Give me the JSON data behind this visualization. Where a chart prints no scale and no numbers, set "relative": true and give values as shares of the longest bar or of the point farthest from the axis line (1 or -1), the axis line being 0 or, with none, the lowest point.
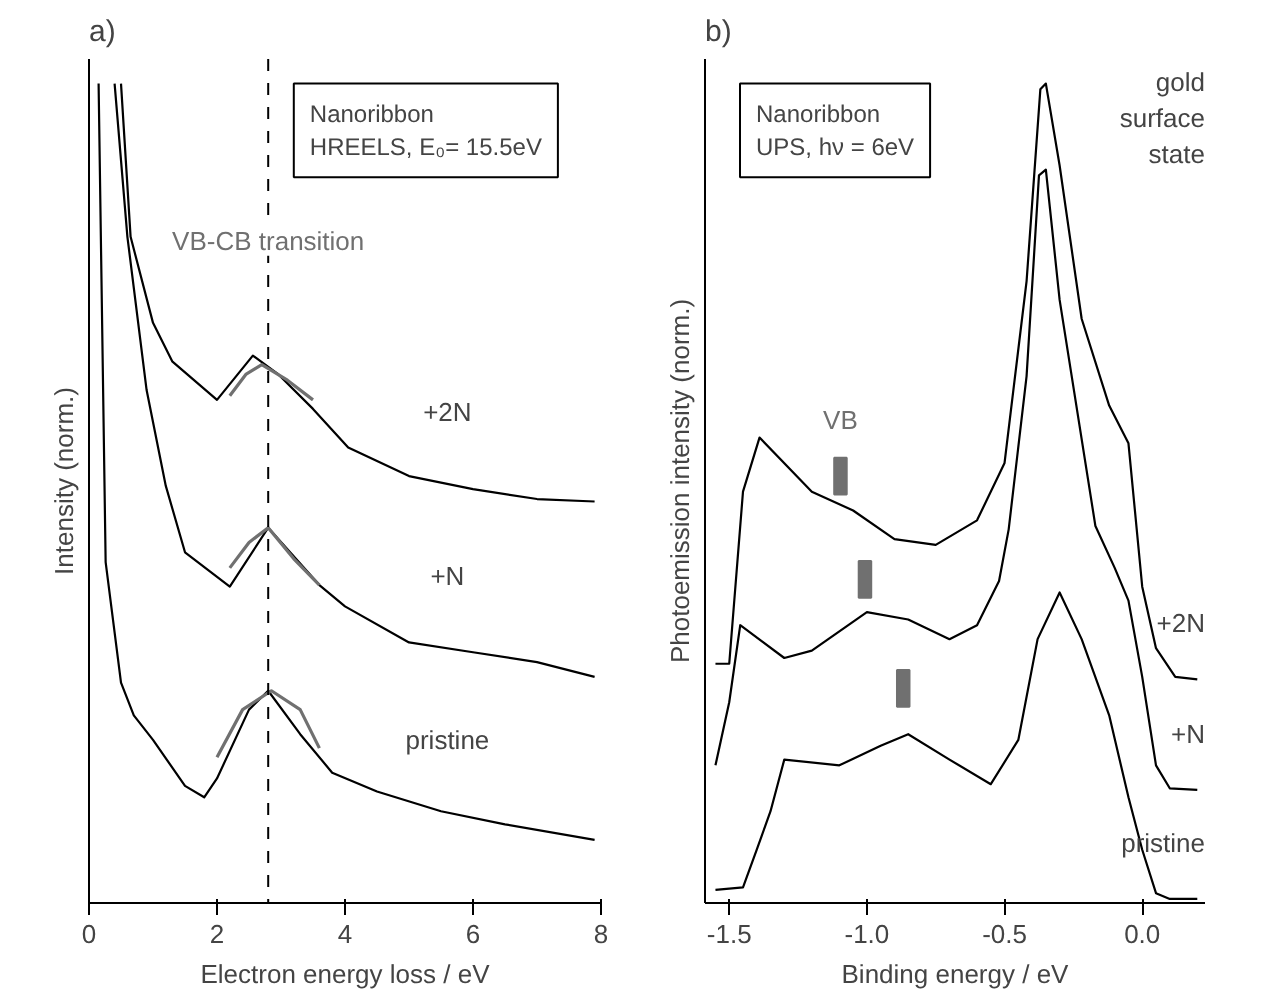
{
  "chart_data": [
    {
      "type": "line",
      "relative": true,
      "xlabel": "Electron energy loss / eV",
      "ylabel": "Intensity (norm.)",
      "xlim": [
        0,
        8
      ],
      "xticks": [
        0,
        2,
        4,
        6,
        8
      ],
      "grid": false,
      "legend": false,
      "marker": "none",
      "line_style": "solid",
      "annotations": [
        "a)",
        "Nanoribbon",
        "HREELS, E₀= 15.5eV"
      ],
      "ref_lines": [
        {
          "axis": "x",
          "value": 2.8,
          "label": "VB-CB transition",
          "line_style": "dashed",
          "color": "#000000"
        }
      ],
      "series": [
        {
          "name": "+2N",
          "color": "#000000",
          "x": [
            0.5,
            0.65,
            1.0,
            1.3,
            2.0,
            2.56,
            2.96,
            3.5,
            4.05,
            5.0,
            6.0,
            7.0,
            7.9
          ],
          "values": [
            1.0,
            0.813,
            0.708,
            0.661,
            0.614,
            0.668,
            0.645,
            0.603,
            0.556,
            0.521,
            0.505,
            0.493,
            0.49
          ]
        },
        {
          "name": "+N",
          "color": "#000000",
          "x": [
            0.4,
            0.6,
            0.9,
            1.2,
            1.5,
            2.2,
            2.8,
            3.6,
            4.0,
            5.0,
            6.0,
            7.0,
            7.9
          ],
          "values": [
            1.0,
            0.813,
            0.626,
            0.509,
            0.428,
            0.386,
            0.458,
            0.388,
            0.362,
            0.318,
            0.306,
            0.294,
            0.276
          ]
        },
        {
          "name": "pristine",
          "color": "#000000",
          "x": [
            0.15,
            0.26,
            0.5,
            0.7,
            1.0,
            1.5,
            1.8,
            2.0,
            2.5,
            2.8,
            3.3,
            3.8,
            4.5,
            5.5,
            6.5,
            7.9
          ],
          "values": [
            1.0,
            0.416,
            0.269,
            0.229,
            0.199,
            0.143,
            0.129,
            0.152,
            0.236,
            0.259,
            0.206,
            0.159,
            0.136,
            0.112,
            0.096,
            0.077
          ]
        },
        {
          "type": "line",
          "color": "#707070",
          "x": [
            2.2,
            2.45,
            2.7,
            3.1,
            3.5
          ],
          "values": [
            0.619,
            0.645,
            0.657,
            0.638,
            0.614
          ]
        },
        {
          "type": "line",
          "color": "#707070",
          "x": [
            2.2,
            2.5,
            2.8,
            3.2,
            3.6
          ],
          "values": [
            0.409,
            0.44,
            0.458,
            0.42,
            0.388
          ]
        },
        {
          "type": "line",
          "color": "#707070",
          "x": [
            2.0,
            2.4,
            2.85,
            3.3,
            3.6
          ],
          "values": [
            0.178,
            0.236,
            0.259,
            0.236,
            0.189
          ]
        }
      ]
    },
    {
      "type": "line",
      "relative": true,
      "xlabel": "Binding energy / eV",
      "ylabel": "Photoemission intensity (norm.)",
      "xlim": [
        -1.588,
        0.228
      ],
      "xticks": [
        {
          "value": -1.5,
          "label": "-1.5"
        },
        {
          "value": -1.0,
          "label": "-1.0"
        },
        {
          "value": -0.5,
          "label": "-0.5"
        },
        {
          "value": 0.0,
          "label": "0.0"
        }
      ],
      "grid": false,
      "legend": false,
      "marker": "none",
      "line_style": "solid",
      "annotations": [
        "b)",
        "Nanoribbon",
        "UPS, hν = 6eV",
        "gold surface state",
        "VB"
      ],
      "series": [
        {
          "name": "+2N",
          "color": "#000000",
          "x": [
            -1.55,
            -1.5,
            -1.45,
            -1.39,
            -1.2,
            -1.05,
            -0.9,
            -0.75,
            -0.6,
            -0.5,
            -0.42,
            -0.37,
            -0.35,
            -0.3,
            -0.22,
            -0.12,
            -0.05,
            0.0,
            0.05,
            0.12,
            0.2
          ],
          "values": [
            0.292,
            0.292,
            0.502,
            0.568,
            0.502,
            0.479,
            0.444,
            0.437,
            0.467,
            0.537,
            0.759,
            0.993,
            1.0,
            0.9,
            0.713,
            0.607,
            0.561,
            0.386,
            0.311,
            0.276,
            0.273
          ]
        },
        {
          "name": "+N",
          "color": "#000000",
          "x": [
            -1.55,
            -1.5,
            -1.46,
            -1.3,
            -1.2,
            -1.0,
            -0.85,
            -0.7,
            -0.6,
            -0.52,
            -0.485,
            -0.42,
            -0.375,
            -0.35,
            -0.3,
            -0.17,
            -0.1,
            -0.05,
            0.0,
            0.05,
            0.1,
            0.2
          ],
          "values": [
            0.168,
            0.245,
            0.339,
            0.299,
            0.308,
            0.355,
            0.346,
            0.322,
            0.339,
            0.393,
            0.456,
            0.643,
            0.888,
            0.895,
            0.736,
            0.46,
            0.409,
            0.369,
            0.276,
            0.168,
            0.14,
            0.138
          ]
        },
        {
          "name": "pristine",
          "color": "#000000",
          "x": [
            -1.55,
            -1.45,
            -1.4,
            -1.35,
            -1.3,
            -1.1,
            -0.95,
            -0.85,
            -0.7,
            -0.55,
            -0.45,
            -0.38,
            -0.3,
            -0.22,
            -0.12,
            -0.05,
            0.0,
            0.05,
            0.1,
            0.2
          ],
          "values": [
            0.016,
            0.019,
            0.065,
            0.112,
            0.175,
            0.168,
            0.192,
            0.206,
            0.175,
            0.145,
            0.199,
            0.322,
            0.379,
            0.322,
            0.229,
            0.129,
            0.065,
            0.012,
            0.005,
            0.005
          ]
        },
        {
          "type": "scatter",
          "marker": "square",
          "color": "#707070",
          "x": [
            -1.096,
            -1.007,
            -0.868
          ],
          "values": [
            0.521,
            0.395,
            0.262
          ]
        }
      ]
    }
  ]
}
